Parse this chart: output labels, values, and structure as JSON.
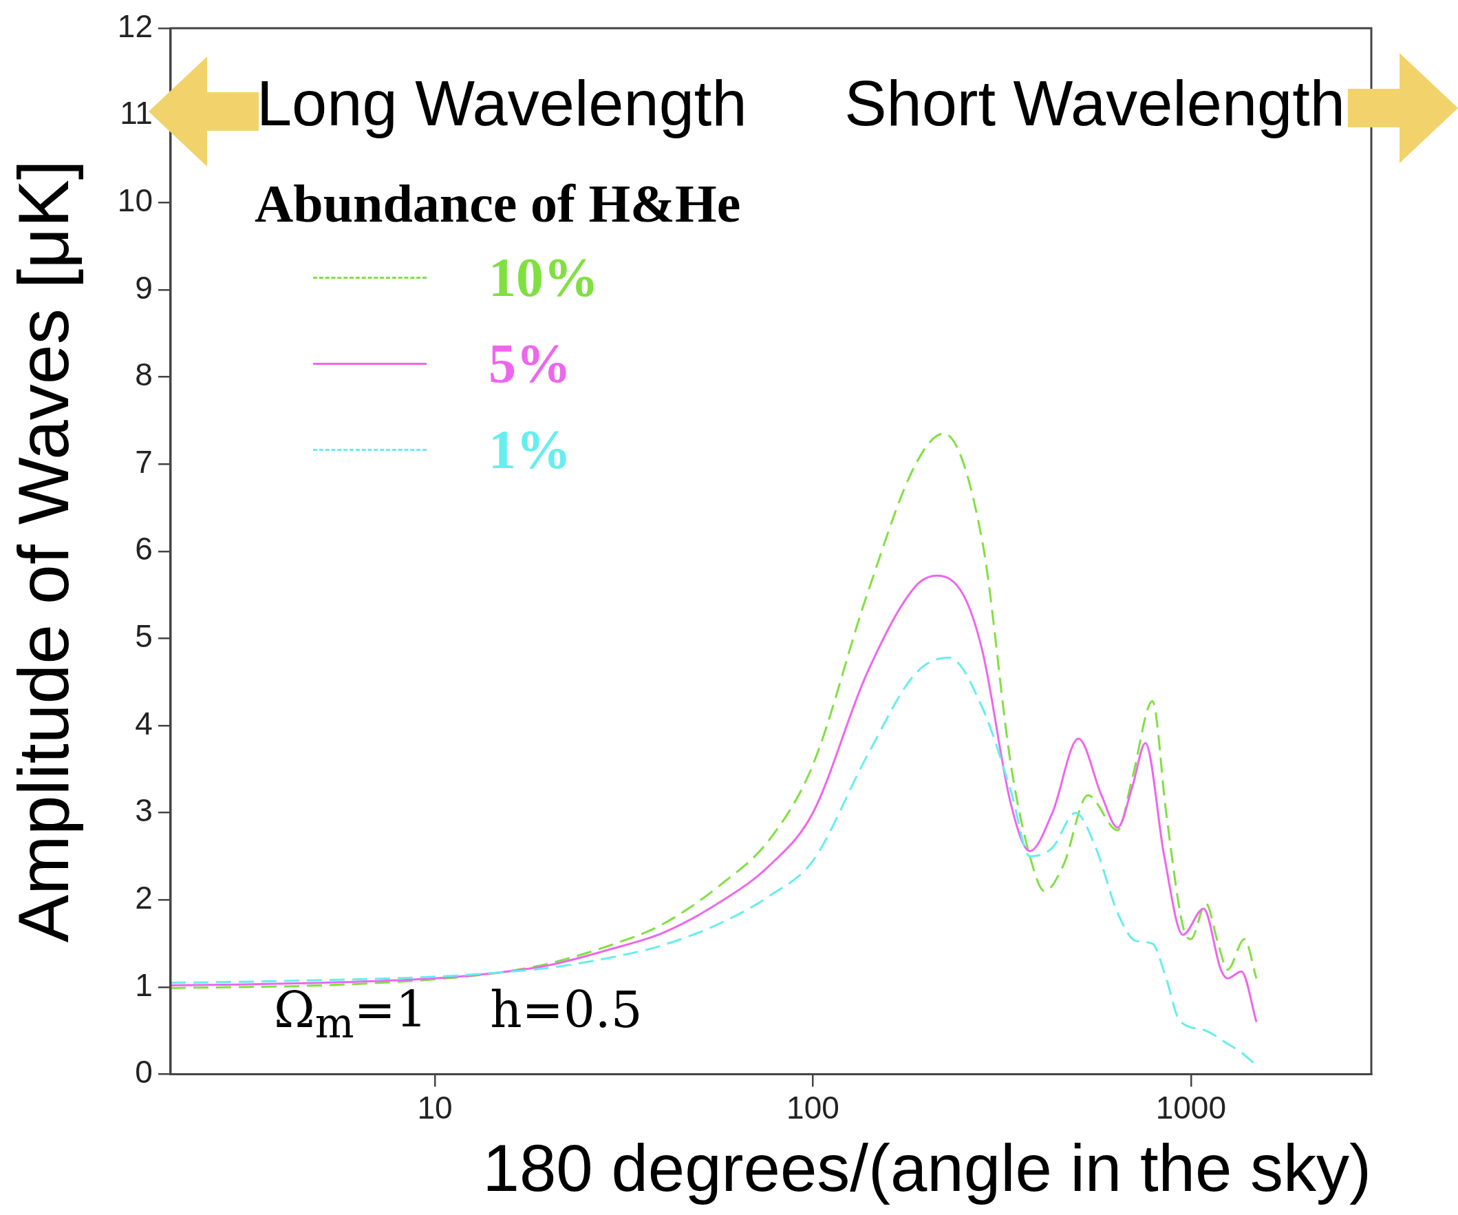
{
  "chart_data": {
    "type": "line",
    "xlabel": "180 degrees/(angle in the sky)",
    "ylabel": "Amplitude of Waves [μK]",
    "legend_title": "Abundance of H&He",
    "legend": "top left",
    "log": "x",
    "grid": false,
    "marker": "none",
    "xlim": [
      2,
      3000
    ],
    "xticks": [
      10,
      100,
      1000
    ],
    "ylim": [
      0,
      12
    ],
    "yticks": [
      0,
      1,
      2,
      3,
      4,
      5,
      6,
      7,
      8,
      9,
      10,
      11,
      12
    ],
    "annotations": [
      "Long Wavelength",
      "Short Wavelength",
      "Ω$_{m}$=1    h=0.5"
    ],
    "series": [
      {
        "name": "10%",
        "color": "#80e040",
        "line_style": "dashed",
        "x": [
          2,
          3,
          5,
          10,
          15,
          20,
          30,
          40,
          58,
          77,
          100,
          139,
          187,
          222,
          281,
          334,
          375,
          410,
          460,
          534,
          640,
          700,
          791,
          860,
          952,
          1000,
          1095,
          1180,
          1250,
          1385,
          1490
        ],
        "values": [
          0.99,
          1.0,
          1.02,
          1.09,
          1.17,
          1.27,
          1.5,
          1.72,
          2.2,
          2.7,
          3.55,
          5.5,
          7.0,
          7.35,
          6.1,
          3.55,
          2.5,
          2.1,
          2.4,
          3.2,
          2.8,
          3.4,
          4.28,
          3.0,
          1.7,
          1.55,
          1.96,
          1.5,
          1.2,
          1.55,
          1.1
        ]
      },
      {
        "name": "5%",
        "color": "#ee66ee",
        "line_style": "solid",
        "x": [
          2,
          3,
          5,
          10,
          15,
          20,
          30,
          40,
          58,
          77,
          100,
          139,
          187,
          213,
          250,
          281,
          334,
          375,
          430,
          504,
          580,
          640,
          700,
          758,
          850,
          952,
          1080,
          1200,
          1250,
          1360,
          1490
        ],
        "values": [
          1.02,
          1.03,
          1.05,
          1.1,
          1.17,
          1.25,
          1.45,
          1.62,
          2.0,
          2.4,
          3.0,
          4.6,
          5.6,
          5.72,
          5.5,
          4.85,
          3.1,
          2.56,
          3.0,
          3.85,
          3.2,
          2.83,
          3.3,
          3.8,
          2.5,
          1.6,
          1.9,
          1.2,
          1.1,
          1.18,
          0.6
        ]
      },
      {
        "name": "1%",
        "color": "#66eeee",
        "line_style": "dashed",
        "x": [
          2,
          3,
          5,
          10,
          15,
          20,
          30,
          40,
          58,
          77,
          100,
          139,
          187,
          229,
          281,
          334,
          375,
          430,
          495,
          560,
          640,
          715,
          790,
          860,
          932,
          1080,
          1250,
          1360,
          1490
        ],
        "values": [
          1.05,
          1.06,
          1.08,
          1.12,
          1.17,
          1.22,
          1.35,
          1.48,
          1.75,
          2.05,
          2.45,
          3.65,
          4.6,
          4.78,
          4.2,
          3.25,
          2.5,
          2.6,
          3.0,
          2.6,
          1.85,
          1.53,
          1.5,
          1.1,
          0.62,
          0.51,
          0.35,
          0.25,
          0.1
        ]
      }
    ]
  }
}
